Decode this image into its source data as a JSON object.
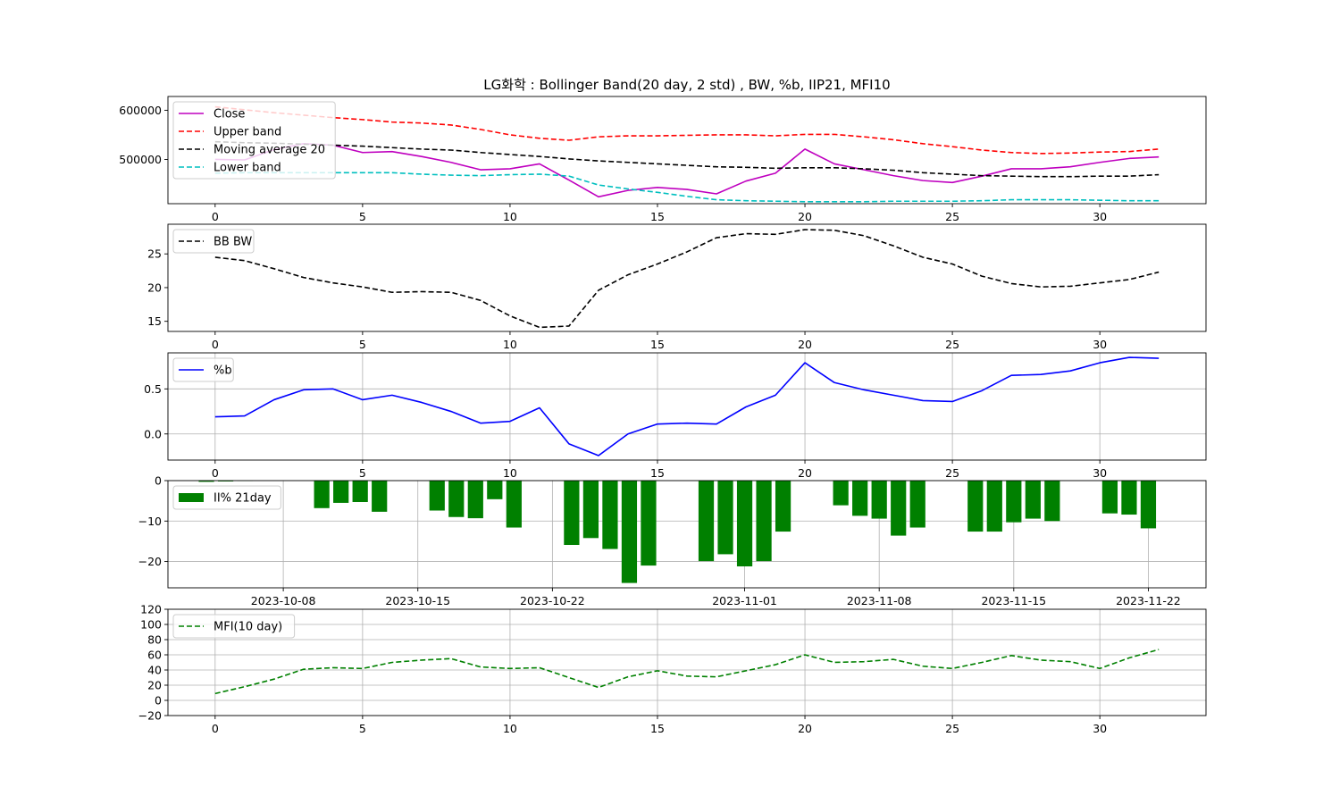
{
  "title": "LG화학 : Bollinger Band(20 day, 2 std) , BW, %b, IIP21, MFI10",
  "colors": {
    "close": "#bf00bf",
    "upper": "#ff0000",
    "ma": "#000000",
    "lower": "#00bfbf",
    "bw": "#000000",
    "pb": "#0000ff",
    "iip": "#008000",
    "mfi": "#008000",
    "grid": "#b0b0b0"
  },
  "chart_data": [
    {
      "type": "line",
      "name": "price",
      "x": [
        0,
        1,
        2,
        3,
        4,
        5,
        6,
        7,
        8,
        9,
        10,
        11,
        12,
        13,
        14,
        15,
        16,
        17,
        18,
        19,
        20,
        21,
        22,
        23,
        24,
        25,
        26,
        27,
        28,
        29,
        30,
        31,
        32
      ],
      "xlim": [
        -1.6,
        33.6
      ],
      "ylim": [
        410000,
        628000
      ],
      "yticks": [
        500000,
        600000
      ],
      "ytick_labels": [
        "500000",
        "600000"
      ],
      "xticks": [
        0,
        5,
        10,
        15,
        20,
        25,
        30
      ],
      "xtick_labels": [
        "0",
        "5",
        "10",
        "15",
        "20",
        "25",
        "30"
      ],
      "grid": false,
      "legend": "upper left",
      "series": [
        {
          "name": "Close",
          "key": "close",
          "style": "solid",
          "values": [
            500000,
            499000,
            520000,
            532000,
            529000,
            514000,
            516000,
            506000,
            494000,
            479000,
            481000,
            491000,
            458000,
            424000,
            437000,
            443000,
            439000,
            430000,
            456000,
            472000,
            521000,
            491000,
            479000,
            467000,
            457000,
            453000,
            466000,
            481000,
            481000,
            485000,
            494000,
            502000,
            505000
          ]
        },
        {
          "name": "Upper band",
          "key": "upper",
          "style": "dashed",
          "values": [
            607000,
            601000,
            595000,
            590000,
            585000,
            581000,
            576000,
            574000,
            570000,
            561000,
            550000,
            543000,
            539000,
            546000,
            548000,
            548000,
            549000,
            550000,
            550000,
            548000,
            551000,
            551000,
            546000,
            540000,
            532000,
            526000,
            519000,
            514000,
            512000,
            513000,
            515000,
            516000,
            521000
          ]
        },
        {
          "name": "Moving average 20",
          "key": "ma",
          "style": "dashed",
          "values": [
            536000,
            534000,
            533000,
            531000,
            529000,
            527000,
            524000,
            521000,
            519000,
            514000,
            510000,
            506000,
            501000,
            497000,
            494000,
            491000,
            488000,
            485000,
            484000,
            482000,
            483000,
            483000,
            481000,
            478000,
            473000,
            470000,
            467000,
            466000,
            465000,
            465000,
            466000,
            466000,
            469000
          ]
        },
        {
          "name": "Lower band",
          "key": "lower",
          "style": "dashed",
          "values": [
            472000,
            473000,
            473000,
            473000,
            473000,
            473000,
            473000,
            470000,
            468000,
            467000,
            469000,
            470000,
            466000,
            448000,
            440000,
            433000,
            425000,
            418000,
            416000,
            415000,
            414000,
            414000,
            414000,
            415000,
            415000,
            415000,
            416000,
            418000,
            418000,
            418000,
            417000,
            416000,
            416000
          ]
        }
      ]
    },
    {
      "type": "line",
      "name": "bandwidth",
      "x": [
        0,
        1,
        2,
        3,
        4,
        5,
        6,
        7,
        8,
        9,
        10,
        11,
        12,
        13,
        14,
        15,
        16,
        17,
        18,
        19,
        20,
        21,
        22,
        23,
        24,
        25,
        26,
        27,
        28,
        29,
        30,
        31,
        32
      ],
      "xlim": [
        -1.6,
        33.6
      ],
      "ylim": [
        13.5,
        29.4
      ],
      "yticks": [
        15,
        20,
        25
      ],
      "ytick_labels": [
        "15",
        "20",
        "25"
      ],
      "xticks": [
        0,
        5,
        10,
        15,
        20,
        25,
        30
      ],
      "xtick_labels": [
        "0",
        "5",
        "10",
        "15",
        "20",
        "25",
        "30"
      ],
      "grid": false,
      "legend": "upper left",
      "series": [
        {
          "name": "BB BW",
          "key": "bw",
          "style": "dashed",
          "values": [
            24.5,
            24.0,
            22.8,
            21.5,
            20.7,
            20.1,
            19.3,
            19.4,
            19.3,
            18.1,
            15.8,
            14.1,
            14.3,
            19.6,
            21.9,
            23.5,
            25.3,
            27.4,
            28.0,
            27.9,
            28.6,
            28.5,
            27.7,
            26.2,
            24.5,
            23.5,
            21.7,
            20.6,
            20.1,
            20.2,
            20.7,
            21.2,
            22.3
          ]
        }
      ]
    },
    {
      "type": "line",
      "name": "percent_b",
      "x": [
        0,
        1,
        2,
        3,
        4,
        5,
        6,
        7,
        8,
        9,
        10,
        11,
        12,
        13,
        14,
        15,
        16,
        17,
        18,
        19,
        20,
        21,
        22,
        23,
        24,
        25,
        26,
        27,
        28,
        29,
        30,
        31,
        32
      ],
      "xlim": [
        -1.6,
        33.6
      ],
      "ylim": [
        -0.29,
        0.9
      ],
      "yticks": [
        0.0,
        0.5
      ],
      "ytick_labels": [
        "0.0",
        "0.5"
      ],
      "xticks": [
        0,
        5,
        10,
        15,
        20,
        25,
        30
      ],
      "xtick_labels": [
        "0",
        "5",
        "10",
        "15",
        "20",
        "25",
        "30"
      ],
      "grid": true,
      "legend": "upper left",
      "series": [
        {
          "name": "%b",
          "key": "pb",
          "style": "solid",
          "values": [
            0.19,
            0.2,
            0.38,
            0.49,
            0.5,
            0.38,
            0.43,
            0.35,
            0.25,
            0.12,
            0.14,
            0.29,
            -0.11,
            -0.24,
            0.0,
            0.11,
            0.12,
            0.11,
            0.3,
            0.43,
            0.79,
            0.57,
            0.49,
            0.43,
            0.37,
            0.36,
            0.48,
            0.65,
            0.66,
            0.7,
            0.79,
            0.85,
            0.84
          ]
        }
      ]
    },
    {
      "type": "bar",
      "name": "iip21",
      "xlim_dates": [
        "2023-10-02",
        "2023-11-25"
      ],
      "ylim": [
        -26.5,
        0
      ],
      "yticks": [
        -20,
        -10,
        0
      ],
      "ytick_labels": [
        "−20",
        "−10",
        "0"
      ],
      "xticks": [
        "2023-10-08",
        "2023-10-15",
        "2023-10-22",
        "2023-11-01",
        "2023-11-08",
        "2023-11-15",
        "2023-11-22"
      ],
      "xtick_labels": [
        "2023-10-08",
        "2023-10-15",
        "2023-10-22",
        "2023-11-01",
        "2023-11-08",
        "2023-11-15",
        "2023-11-22"
      ],
      "grid": true,
      "legend": "upper left",
      "series": [
        {
          "name": "II% 21day",
          "key": "iip",
          "dates": [
            "2023-10-04",
            "2023-10-05",
            "2023-10-06",
            "2023-10-10",
            "2023-10-11",
            "2023-10-12",
            "2023-10-13",
            "2023-10-16",
            "2023-10-17",
            "2023-10-18",
            "2023-10-19",
            "2023-10-20",
            "2023-10-23",
            "2023-10-24",
            "2023-10-25",
            "2023-10-26",
            "2023-10-27",
            "2023-10-30",
            "2023-10-31",
            "2023-11-01",
            "2023-11-02",
            "2023-11-03",
            "2023-11-06",
            "2023-11-07",
            "2023-11-08",
            "2023-11-09",
            "2023-11-10",
            "2023-11-13",
            "2023-11-14",
            "2023-11-15",
            "2023-11-16",
            "2023-11-17",
            "2023-11-20",
            "2023-11-21",
            "2023-11-22"
          ],
          "values": [
            -0.3,
            -0.2,
            -0.1,
            -6.8,
            -5.5,
            -5.3,
            -7.7,
            -7.4,
            -9.0,
            -9.3,
            -4.6,
            -11.6,
            -15.9,
            -14.2,
            -16.9,
            -25.3,
            -21.0,
            -19.9,
            -18.2,
            -21.2,
            -19.9,
            -12.6,
            -6.1,
            -8.7,
            -9.4,
            -13.6,
            -11.6,
            -12.6,
            -12.6,
            -10.3,
            -9.4,
            -10.0,
            -8.1,
            -8.4,
            -11.8
          ]
        }
      ]
    },
    {
      "type": "line",
      "name": "mfi",
      "x": [
        0,
        1,
        2,
        3,
        4,
        5,
        6,
        7,
        8,
        9,
        10,
        11,
        12,
        13,
        14,
        15,
        16,
        17,
        18,
        19,
        20,
        21,
        22,
        23,
        24,
        25,
        26,
        27,
        28,
        29,
        30,
        31,
        32
      ],
      "xlim": [
        -1.6,
        33.6
      ],
      "ylim": [
        -20,
        120
      ],
      "yticks": [
        -20,
        0,
        20,
        40,
        60,
        80,
        100,
        120
      ],
      "ytick_labels": [
        "−20",
        "0",
        "20",
        "40",
        "60",
        "80",
        "100",
        "120"
      ],
      "xticks": [
        0,
        5,
        10,
        15,
        20,
        25,
        30
      ],
      "xtick_labels": [
        "0",
        "5",
        "10",
        "15",
        "20",
        "25",
        "30"
      ],
      "grid": true,
      "legend": "upper left",
      "series": [
        {
          "name": "MFI(10 day)",
          "key": "mfi",
          "style": "dashed",
          "values": [
            9,
            18,
            28,
            41,
            43,
            42,
            50,
            53,
            55,
            44,
            42,
            43,
            30,
            17,
            31,
            39,
            32,
            31,
            39,
            47,
            60,
            50,
            51,
            54,
            45,
            42,
            50,
            59,
            53,
            51,
            42,
            56,
            67
          ]
        }
      ]
    }
  ]
}
